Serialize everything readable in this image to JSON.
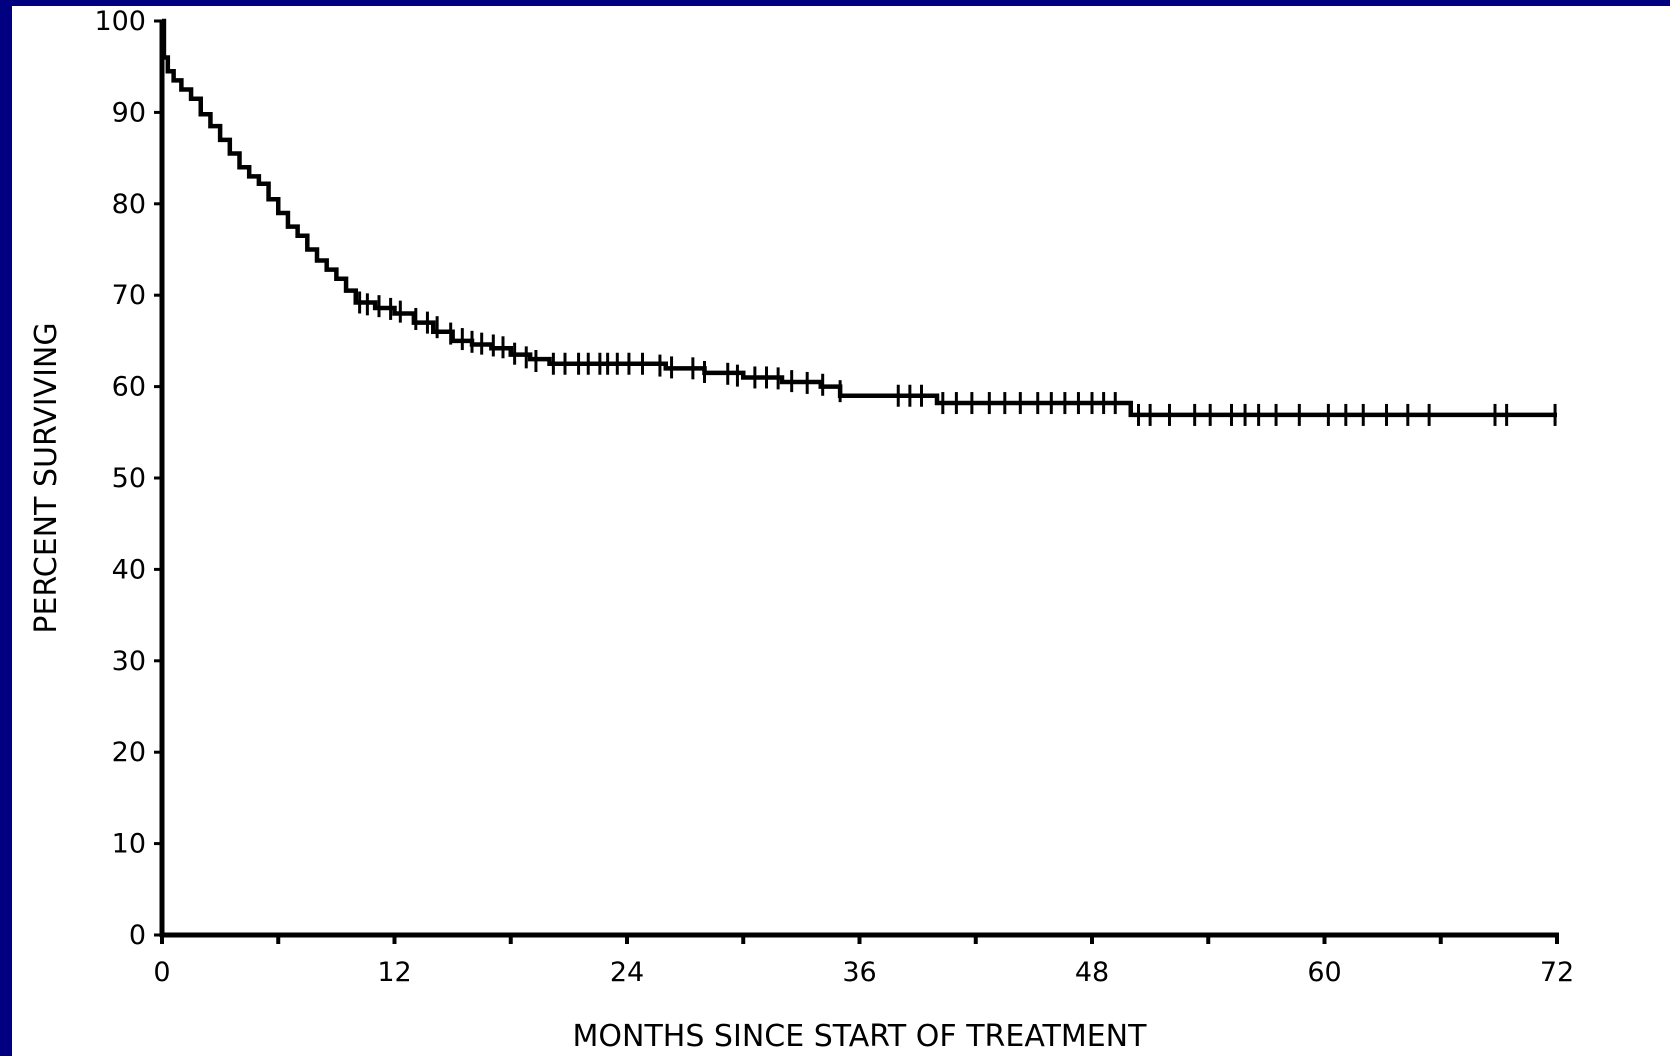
{
  "chart_data": {
    "type": "line",
    "title": "",
    "xlabel": "MONTHS SINCE START OF TREATMENT",
    "ylabel": "PERCENT SURVIVING",
    "xlim": [
      0,
      72
    ],
    "ylim": [
      0,
      100
    ],
    "x_ticks": [
      0,
      12,
      24,
      36,
      48,
      60,
      72
    ],
    "y_ticks": [
      0,
      10,
      20,
      30,
      40,
      50,
      60,
      70,
      80,
      90,
      100
    ],
    "grid": false,
    "legend": "none",
    "series": [
      {
        "color": "#000000",
        "step": true,
        "x": [
          0,
          0.1,
          0.3,
          0.6,
          1,
          1.5,
          2,
          2.5,
          3,
          3.5,
          4,
          4.5,
          5,
          5.5,
          6,
          6.5,
          7,
          7.5,
          8,
          8.5,
          9,
          9.5,
          10,
          11,
          12,
          13,
          14,
          15,
          16,
          17,
          18,
          19,
          20,
          22,
          24,
          26,
          28,
          30,
          32,
          34,
          35,
          38,
          40,
          42,
          44,
          46,
          48,
          49.8,
          50,
          55,
          60,
          65,
          70,
          72
        ],
        "y": [
          100,
          96,
          94.5,
          93.5,
          92.5,
          91.5,
          89.8,
          88.5,
          87,
          85.5,
          84,
          83,
          82.2,
          80.5,
          79,
          77.5,
          76.5,
          75,
          73.8,
          72.8,
          71.8,
          70.5,
          69.2,
          68.6,
          68,
          67,
          66,
          65,
          64.6,
          64.2,
          63.5,
          63,
          62.5,
          62.5,
          62.5,
          62,
          61.5,
          61,
          60.5,
          60,
          59,
          59,
          58.2,
          58.2,
          58.2,
          58.2,
          58.2,
          58.2,
          56.9,
          56.9,
          56.9,
          56.9,
          56.9,
          56.9
        ]
      }
    ],
    "censor_marks": {
      "x": [
        10.2,
        10.6,
        11.2,
        11.8,
        12.3,
        13.1,
        13.7,
        14.2,
        14.9,
        15.5,
        16.0,
        16.5,
        17.1,
        17.6,
        18.2,
        18.8,
        19.3,
        20.2,
        20.8,
        21.5,
        22.0,
        22.6,
        23.0,
        23.5,
        24.1,
        24.8,
        25.7,
        26.3,
        27.4,
        28.0,
        29.2,
        29.7,
        30.6,
        31.2,
        31.8,
        32.5,
        33.3,
        34.1,
        35.0,
        38.0,
        38.6,
        39.2,
        40.3,
        41.0,
        41.8,
        42.7,
        43.5,
        44.3,
        45.2,
        45.9,
        46.6,
        47.3,
        48.0,
        48.6,
        49.2,
        50.4,
        51.0,
        52.0,
        53.3,
        54.1,
        55.2,
        55.9,
        56.6,
        57.5,
        58.7,
        60.2,
        61.1,
        62.0,
        63.2,
        64.3,
        65.4,
        68.8,
        69.4,
        71.9
      ],
      "y": [
        69.2,
        69.0,
        68.8,
        68.5,
        68.2,
        67.4,
        67.0,
        66.5,
        65.8,
        65.2,
        64.9,
        64.7,
        64.5,
        64.3,
        63.6,
        63.2,
        62.8,
        62.5,
        62.5,
        62.5,
        62.5,
        62.5,
        62.5,
        62.5,
        62.5,
        62.5,
        62.3,
        62.1,
        62.0,
        61.6,
        61.4,
        61.2,
        61.0,
        61.0,
        60.9,
        60.6,
        60.4,
        60.2,
        59.5,
        59.0,
        59.0,
        59.0,
        58.2,
        58.2,
        58.2,
        58.2,
        58.2,
        58.2,
        58.2,
        58.2,
        58.2,
        58.2,
        58.2,
        58.2,
        58.2,
        56.9,
        56.9,
        56.9,
        56.9,
        56.9,
        56.9,
        56.9,
        56.9,
        56.9,
        56.9,
        56.9,
        56.9,
        56.9,
        56.9,
        56.9,
        56.9,
        56.9,
        56.9,
        56.9
      ]
    }
  }
}
